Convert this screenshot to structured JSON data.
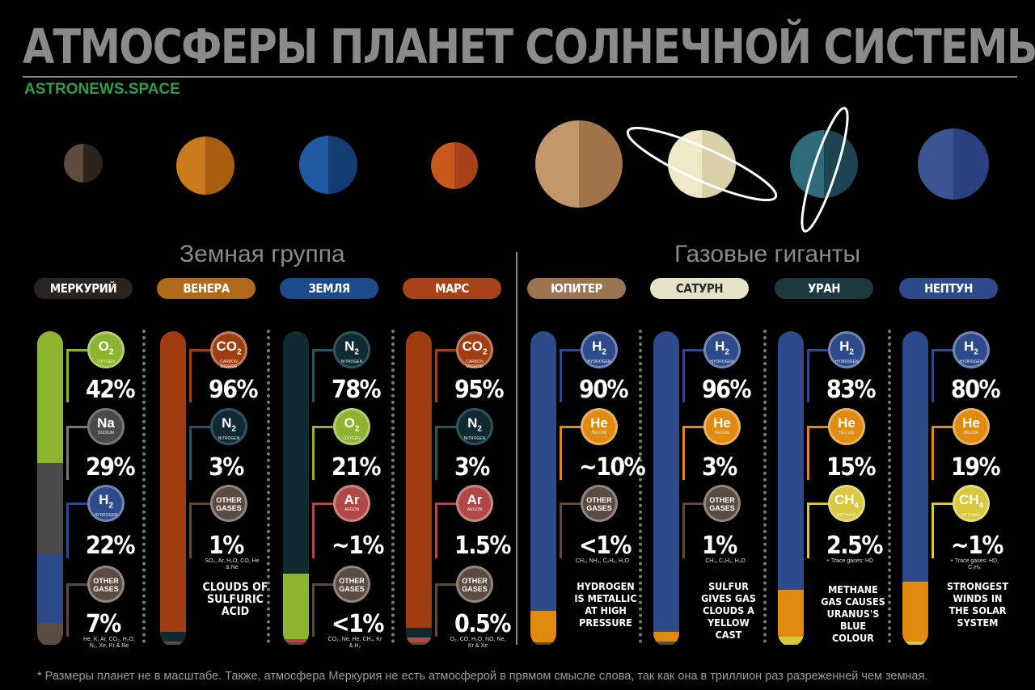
{
  "title": "АТМОСФЕРЫ ПЛАНЕТ СОЛНЕЧНОЙ СИСТЕМЫ",
  "site": "ASTRONEWS.SPACE",
  "groups": {
    "terrestrial": "Земная группа",
    "giants": "Газовые гиганты"
  },
  "footnote": "* Размеры планет не в масштабе. Также,  атмосфера Меркурия не есть атмосферой в прямом смысле слова, так как она в триллион раз разреженней чем земная.",
  "colors": {
    "o2": "#8db42f",
    "na": "#4a4a4a",
    "h2": "#2d4a8a",
    "other": "#5a4a40",
    "co2": "#a03e12",
    "n2": "#0f2a30",
    "ar": "#b04848",
    "he": "#e08a10",
    "ch4": "#d8c840"
  },
  "planets": [
    {
      "name": "МЕРКУРИЙ",
      "pill": "#2a231e",
      "pill_text": "#ffffff",
      "body": [
        "#5e4b3c",
        "#2b231c"
      ],
      "gases": [
        {
          "sym": "O",
          "sub": "2",
          "label": "OXYGEN",
          "pct": "42%",
          "fill": "#8db42f",
          "share": 42
        },
        {
          "sym": "Na",
          "sub": "",
          "label": "SODIUM",
          "pct": "29%",
          "fill": "#4a4a4a",
          "share": 29
        },
        {
          "sym": "H",
          "sub": "2",
          "label": "HYDROGEN",
          "pct": "22%",
          "fill": "#2d4a8a",
          "share": 22
        },
        {
          "sym": "OTHER GASES",
          "sub": "",
          "label": "",
          "pct": "7%",
          "fill": "#5a4a40",
          "share": 7,
          "note": "He, K, Ar, CO₂, H₂O, N₂, Xe, Kr & Ne"
        }
      ],
      "fact": ""
    },
    {
      "name": "ВЕНЕРА",
      "pill": "#b06a1c",
      "pill_text": "#ffffff",
      "body": [
        "#c97a1c",
        "#a85d0f"
      ],
      "gases": [
        {
          "sym": "CO",
          "sub": "2",
          "label": "CARBON DIOXIDE",
          "pct": "96%",
          "fill": "#a03e12",
          "share": 96
        },
        {
          "sym": "N",
          "sub": "2",
          "label": "NITROGEN",
          "pct": "3%",
          "fill": "#0f2a30",
          "share": 3
        },
        {
          "sym": "OTHER GASES",
          "sub": "",
          "label": "",
          "pct": "1%",
          "fill": "#5a4a40",
          "share": 1,
          "note": "SO₂, Ar, H₂O, CO, He & Ne"
        }
      ],
      "fact": "CLOUDS OF SULFURIC ACID"
    },
    {
      "name": "ЗЕМЛЯ",
      "pill": "#1d4a8a",
      "pill_text": "#ffffff",
      "body": [
        "#1f5aa0",
        "#123c72"
      ],
      "gases": [
        {
          "sym": "N",
          "sub": "2",
          "label": "NITROGEN",
          "pct": "78%",
          "fill": "#0f2a30",
          "share": 78
        },
        {
          "sym": "O",
          "sub": "2",
          "label": "OXYGEN",
          "pct": "21%",
          "fill": "#8db42f",
          "share": 21
        },
        {
          "sym": "Ar",
          "sub": "",
          "label": "ARGON",
          "pct": "~1%",
          "fill": "#b04848",
          "share": 1
        },
        {
          "sym": "OTHER GASES",
          "sub": "",
          "label": "",
          "pct": "<1%",
          "fill": "#5a4a40",
          "share": 0,
          "note": "CO₂, Ne, He, CH₄, Kr & H₂"
        }
      ],
      "fact": ""
    },
    {
      "name": "МАРС",
      "pill": "#a8421a",
      "pill_text": "#ffffff",
      "body": [
        "#c9581c",
        "#a8401a"
      ],
      "gases": [
        {
          "sym": "CO",
          "sub": "2",
          "label": "CARBON DIOXIDE",
          "pct": "95%",
          "fill": "#a03e12",
          "share": 95
        },
        {
          "sym": "N",
          "sub": "2",
          "label": "NITROGEN",
          "pct": "3%",
          "fill": "#0f2a30",
          "share": 3
        },
        {
          "sym": "Ar",
          "sub": "",
          "label": "ARGON",
          "pct": "1.5%",
          "fill": "#b04848",
          "share": 1.5
        },
        {
          "sym": "OTHER GASES",
          "sub": "",
          "label": "",
          "pct": "0.5%",
          "fill": "#5a4a40",
          "share": 0.5,
          "note": "O₂, CO, H₂O, NO, Ne, Kr & Xe"
        }
      ],
      "fact": ""
    },
    {
      "name": "ЮПИТЕР",
      "pill": "#9a7450",
      "pill_text": "#ffffff",
      "body": [
        "#c4976a",
        "#9e7448"
      ],
      "gases": [
        {
          "sym": "H",
          "sub": "2",
          "label": "HYDROGEN",
          "pct": "90%",
          "fill": "#2d4a8a",
          "share": 90
        },
        {
          "sym": "He",
          "sub": "",
          "label": "HELIUM",
          "pct": "~10%",
          "fill": "#e08a10",
          "share": 10
        },
        {
          "sym": "OTHER GASES",
          "sub": "",
          "label": "",
          "pct": "<1%",
          "fill": "#5a4a40",
          "share": 0,
          "note": "CH₄, NH₃, C₂H₆, H₂O"
        }
      ],
      "fact": "HYDROGEN IS METALLIC AT HIGH PRESSURE"
    },
    {
      "name": "САТУРН",
      "pill": "#e6e2c8",
      "pill_text": "#2a2a2a",
      "body": [
        "#efe9c8",
        "#d8d0a6"
      ],
      "gases": [
        {
          "sym": "H",
          "sub": "2",
          "label": "HYDROGEN",
          "pct": "96%",
          "fill": "#2d4a8a",
          "share": 96
        },
        {
          "sym": "He",
          "sub": "",
          "label": "HELIUM",
          "pct": "3%",
          "fill": "#e08a10",
          "share": 3
        },
        {
          "sym": "OTHER GASES",
          "sub": "",
          "label": "",
          "pct": "1%",
          "fill": "#5a4a40",
          "share": 1,
          "note": "CH₄, C₂H₆, H₂O"
        }
      ],
      "fact": "SULFUR GIVES GAS CLOUDS A YELLOW CAST"
    },
    {
      "name": "УРАН",
      "pill": "#1c3a40",
      "pill_text": "#ffffff",
      "body": [
        "#2f6a78",
        "#1d4450"
      ],
      "gases": [
        {
          "sym": "H",
          "sub": "2",
          "label": "HYDROGEN",
          "pct": "83%",
          "fill": "#2d4a8a",
          "share": 83
        },
        {
          "sym": "He",
          "sub": "",
          "label": "HELIUM",
          "pct": "15%",
          "fill": "#e08a10",
          "share": 15
        },
        {
          "sym": "CH",
          "sub": "4",
          "label": "METHANE",
          "pct": "2.5%",
          "fill": "#d8c840",
          "share": 2.5,
          "note": "+ Trace gases: HD"
        }
      ],
      "fact": "METHANE GAS CAUSES URANUS'S BLUE COLOUR"
    },
    {
      "name": "НЕПТУН",
      "pill": "#2d4a8a",
      "pill_text": "#ffffff",
      "body": [
        "#3a5494",
        "#2a4080"
      ],
      "gases": [
        {
          "sym": "H",
          "sub": "2",
          "label": "HYDROGEN",
          "pct": "80%",
          "fill": "#2d4a8a",
          "share": 80
        },
        {
          "sym": "He",
          "sub": "",
          "label": "HELIUM",
          "pct": "19%",
          "fill": "#e08a10",
          "share": 19
        },
        {
          "sym": "CH",
          "sub": "4",
          "label": "METHANE",
          "pct": "~1%",
          "fill": "#d8c840",
          "share": 1,
          "note": "+ Trace gases: HD, C₂H₆"
        }
      ],
      "fact": "STRONGEST WINDS IN THE SOLAR SYSTEM"
    }
  ]
}
